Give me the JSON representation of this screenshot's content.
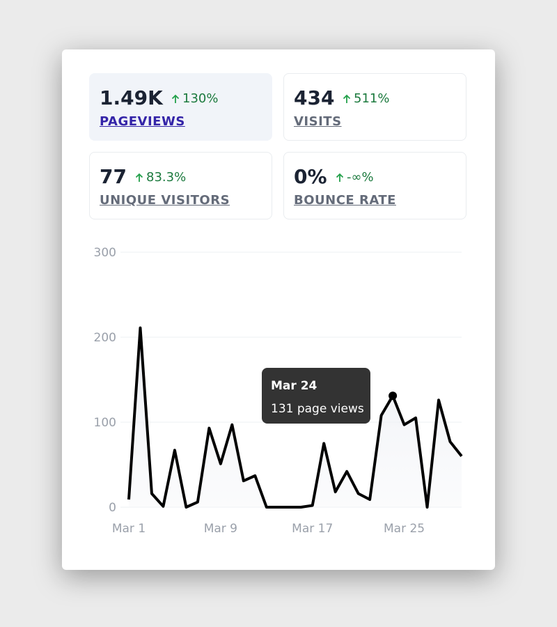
{
  "stats": [
    {
      "value": "1.49K",
      "change": "130%",
      "label": "PAGEVIEWS",
      "selected": true
    },
    {
      "value": "434",
      "change": "511%",
      "label": "VISITS",
      "selected": false
    },
    {
      "value": "77",
      "change": "83.3%",
      "label": "UNIQUE VISITORS",
      "selected": false
    },
    {
      "value": "0%",
      "change": "-∞%",
      "label": "BOUNCE RATE",
      "selected": false
    }
  ],
  "chart_data": {
    "type": "line",
    "categories": [
      "Mar 1",
      null,
      null,
      null,
      null,
      null,
      null,
      null,
      "Mar 9",
      null,
      null,
      null,
      null,
      null,
      null,
      null,
      "Mar 17",
      null,
      null,
      null,
      null,
      null,
      null,
      null,
      "Mar 25",
      null,
      null,
      null,
      null,
      null
    ],
    "values": [
      9,
      211,
      16,
      1,
      67,
      0,
      6,
      93,
      51,
      97,
      31,
      37,
      0,
      0,
      0,
      0,
      2,
      75,
      18,
      42,
      16,
      9,
      108,
      131,
      97,
      105,
      0,
      126,
      77,
      60
    ],
    "color": "#000000",
    "ylim": [
      0,
      300
    ],
    "yticks": [
      0,
      100,
      200,
      300
    ],
    "grid": true,
    "tooltip": {
      "index": 23,
      "title": "Mar 24",
      "label": "131 page views"
    }
  }
}
